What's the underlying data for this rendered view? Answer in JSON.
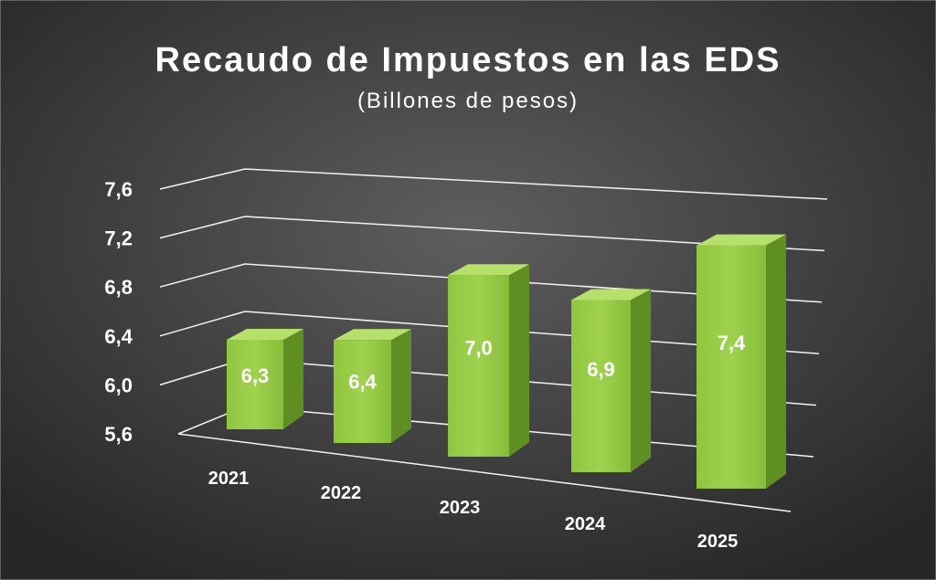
{
  "chart_data": {
    "type": "bar",
    "title": "Recaudo de Impuestos en las EDS",
    "subtitle": "(Billones de pesos)",
    "categories": [
      "2021",
      "2022",
      "2023",
      "2024",
      "2025"
    ],
    "values": [
      6.3,
      6.4,
      7.0,
      6.9,
      7.4
    ],
    "value_labels": [
      "6,3",
      "6,4",
      "7,0",
      "6,9",
      "7,4"
    ],
    "yticks": [
      "5,6",
      "6,0",
      "6,4",
      "6,8",
      "7,2",
      "7,6"
    ],
    "ylim": [
      5.6,
      7.6
    ],
    "xlabel": "",
    "ylabel": "",
    "grid": true,
    "legend": "none",
    "bar_color": "#8dc63f",
    "background_color": "#3c3c3c"
  }
}
